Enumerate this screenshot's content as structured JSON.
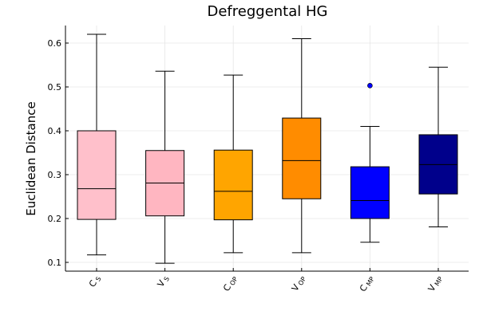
{
  "chart_data": {
    "type": "box",
    "title": "Defreggental HG",
    "ylabel": "Euclidean Distance",
    "xlabel": "",
    "ylim": [
      0.08,
      0.64
    ],
    "yticks": [
      0.1,
      0.2,
      0.3,
      0.4,
      0.5,
      0.6
    ],
    "ytick_labels": [
      "0.1",
      "0.2",
      "0.3",
      "0.4",
      "0.5",
      "0.6"
    ],
    "grid": true,
    "legend": "none",
    "categories": [
      {
        "label": "C S",
        "main": "C",
        "sub": "S"
      },
      {
        "label": "V S",
        "main": "V",
        "sub": "S"
      },
      {
        "label": "C OP",
        "main": "C",
        "sub": "OP"
      },
      {
        "label": "V OP",
        "main": "V",
        "sub": "OP"
      },
      {
        "label": "C MP",
        "main": "C",
        "sub": "MP"
      },
      {
        "label": "V MP",
        "main": "V",
        "sub": "MP"
      }
    ],
    "boxes": [
      {
        "min": 0.117,
        "q1": 0.198,
        "median": 0.268,
        "q3": 0.4,
        "max": 0.62,
        "outliers": [],
        "color": "#FFC0CB"
      },
      {
        "min": 0.098,
        "q1": 0.206,
        "median": 0.281,
        "q3": 0.355,
        "max": 0.536,
        "outliers": [],
        "color": "#FFB6C1"
      },
      {
        "min": 0.122,
        "q1": 0.197,
        "median": 0.262,
        "q3": 0.356,
        "max": 0.527,
        "outliers": [],
        "color": "#FFA500"
      },
      {
        "min": 0.122,
        "q1": 0.245,
        "median": 0.332,
        "q3": 0.429,
        "max": 0.61,
        "outliers": [],
        "color": "#FF8C00"
      },
      {
        "min": 0.146,
        "q1": 0.2,
        "median": 0.241,
        "q3": 0.318,
        "max": 0.41,
        "outliers": [
          0.503
        ],
        "color": "#0000FF"
      },
      {
        "min": 0.181,
        "q1": 0.256,
        "median": 0.323,
        "q3": 0.391,
        "max": 0.545,
        "outliers": [],
        "color": "#00008B"
      }
    ]
  }
}
